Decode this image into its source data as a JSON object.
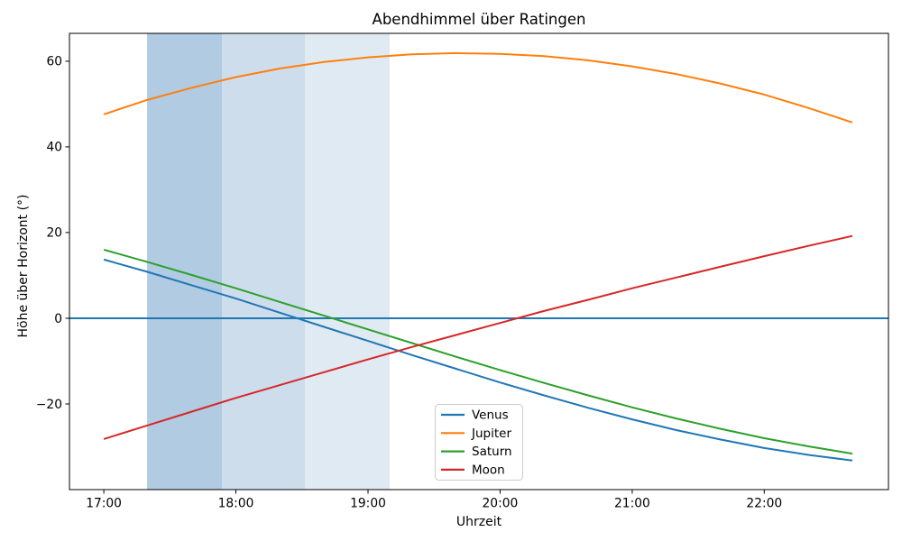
{
  "chart_data": {
    "type": "line",
    "title": "Abendhimmel über Ratingen",
    "xlabel": "Uhrzeit",
    "ylabel": "Höhe über Horizont (°)",
    "grid": false,
    "x_tick_labels": [
      "17:00",
      "18:00",
      "19:00",
      "20:00",
      "21:00",
      "22:00"
    ],
    "x_tick_hours": [
      0,
      1,
      2,
      3,
      4,
      5
    ],
    "y_tick_labels": [
      "−20",
      "0",
      "20",
      "40",
      "60"
    ],
    "y_tick_values": [
      -20,
      0,
      20,
      40,
      60
    ],
    "xlim_hours": [
      -0.26,
      5.94
    ],
    "ylim": [
      -40,
      66.5
    ],
    "x_times": [
      "17:00",
      "17:20",
      "17:40",
      "18:00",
      "18:20",
      "18:40",
      "19:00",
      "19:20",
      "19:40",
      "20:00",
      "20:20",
      "20:40",
      "21:00",
      "21:20",
      "21:40",
      "22:00",
      "22:20",
      "22:40"
    ],
    "x_hours": [
      0,
      0.3333,
      0.6667,
      1,
      1.3333,
      1.6667,
      2,
      2.3333,
      2.6667,
      3,
      3.3333,
      3.6667,
      4,
      4.3333,
      4.6667,
      5,
      5.3333,
      5.6667
    ],
    "series": [
      {
        "name": "Venus",
        "color": "#1f77b4",
        "values": [
          13.7,
          10.8,
          7.7,
          4.6,
          1.3,
          -2.0,
          -5.3,
          -8.6,
          -11.8,
          -15.0,
          -18.0,
          -20.9,
          -23.6,
          -26.1,
          -28.3,
          -30.3,
          -31.9,
          -33.2
        ]
      },
      {
        "name": "Jupiter",
        "color": "#ff7f0e",
        "values": [
          47.6,
          51.0,
          53.8,
          56.3,
          58.3,
          59.8,
          60.9,
          61.6,
          61.9,
          61.7,
          61.2,
          60.2,
          58.8,
          57.0,
          54.8,
          52.2,
          49.1,
          45.7
        ]
      },
      {
        "name": "Saturn",
        "color": "#2ca02c",
        "values": [
          16.0,
          13.1,
          10.1,
          7.0,
          3.8,
          0.6,
          -2.6,
          -5.8,
          -9.0,
          -12.1,
          -15.1,
          -18.0,
          -20.8,
          -23.4,
          -25.8,
          -28.0,
          -29.9,
          -31.6
        ]
      },
      {
        "name": "Moon",
        "color": "#d62728",
        "values": [
          -28.2,
          -25.0,
          -21.8,
          -18.6,
          -15.6,
          -12.6,
          -9.6,
          -6.7,
          -3.9,
          -1.1,
          1.7,
          4.3,
          7.0,
          9.5,
          12.0,
          14.5,
          16.9,
          19.2
        ]
      }
    ],
    "horizon_line": {
      "value": 0,
      "color": "#1f77b4"
    },
    "twilight_bands": [
      {
        "start_time": "17:20",
        "end_time": "17:54",
        "start_hour": 0.328,
        "end_hour": 0.894,
        "color": "#b0cbe2"
      },
      {
        "start_time": "17:54",
        "end_time": "18:31",
        "start_hour": 0.894,
        "end_hour": 1.522,
        "color": "#cdddec"
      },
      {
        "start_time": "18:31",
        "end_time": "19:10",
        "start_hour": 1.522,
        "end_hour": 2.164,
        "color": "#e0eaf3"
      }
    ],
    "legend": {
      "position": "lower-center-inside",
      "entries": [
        "Venus",
        "Jupiter",
        "Saturn",
        "Moon"
      ]
    }
  }
}
